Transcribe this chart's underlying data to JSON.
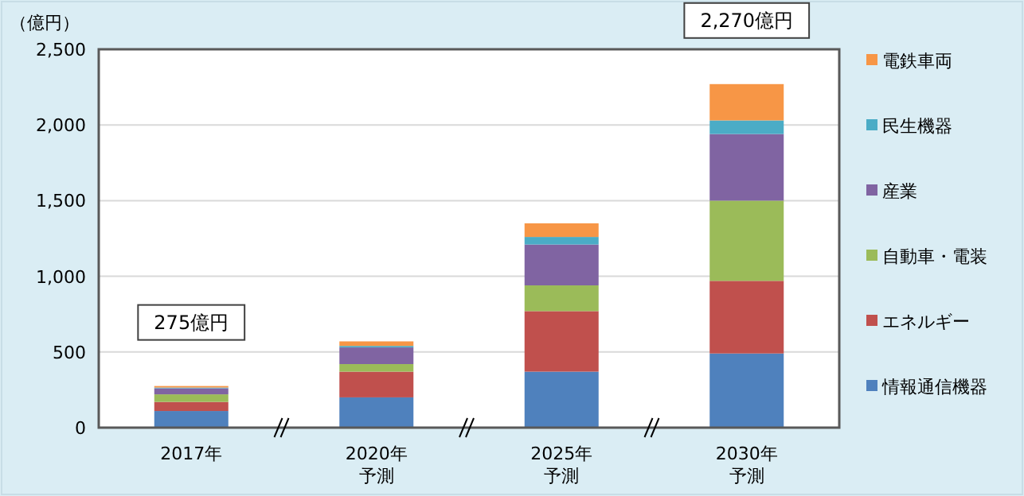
{
  "chart_data": {
    "type": "bar",
    "stacked": true,
    "ylabel": "（億円）",
    "categories": [
      "2017年",
      "2020年予測",
      "2025年予測",
      "2030年予測"
    ],
    "series": [
      {
        "name": "情報通信機器",
        "color": "#4f81bd",
        "values": [
          110,
          200,
          370,
          490
        ]
      },
      {
        "name": "エネルギー",
        "color": "#c0504d",
        "values": [
          60,
          170,
          400,
          480
        ]
      },
      {
        "name": "自動車・電装",
        "color": "#9bbb59",
        "values": [
          50,
          50,
          170,
          530
        ]
      },
      {
        "name": "産業",
        "color": "#8064a2",
        "values": [
          40,
          110,
          270,
          440
        ]
      },
      {
        "name": "民生機器",
        "color": "#4bacc6",
        "values": [
          5,
          10,
          50,
          90
        ]
      },
      {
        "name": "電鉄車両",
        "color": "#f79646",
        "values": [
          10,
          30,
          90,
          240
        ]
      }
    ],
    "ylim": [
      0,
      2500
    ],
    "yticks": [
      0,
      500,
      {
        "value": 1000,
        "label": "1,000"
      },
      {
        "value": 1500,
        "label": "1,500"
      },
      {
        "value": 2000,
        "label": "2,000"
      },
      {
        "value": 2500,
        "label": "2,500"
      }
    ],
    "grid": "y",
    "legend": "right",
    "annotations": [
      {
        "text": "275億円",
        "x": "2017年",
        "y": 275
      },
      {
        "text": "2,270億円",
        "x": "2030年予測",
        "y": 2270
      }
    ]
  }
}
